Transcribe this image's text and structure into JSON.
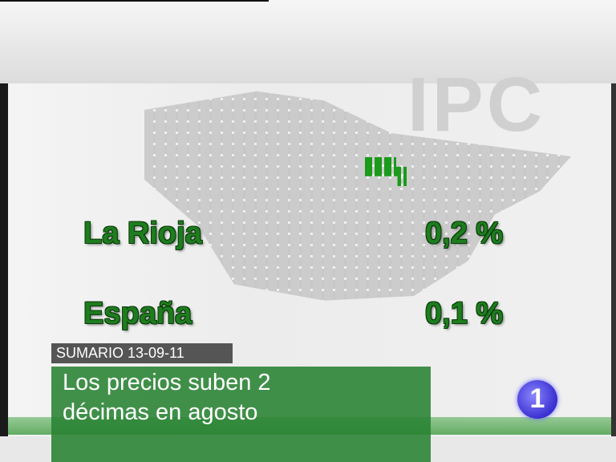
{
  "background": {
    "watermark": "IPC"
  },
  "table": {
    "rows": [
      [
        "La Rioja",
        "0,2 %"
      ],
      [
        "España",
        "0,1 %"
      ]
    ]
  },
  "lower_third": {
    "label": "SUMARIO 13-09-11",
    "headline": [
      "Los precios suben 2",
      "décimas en agosto"
    ]
  },
  "logo": {
    "text": "1"
  }
}
